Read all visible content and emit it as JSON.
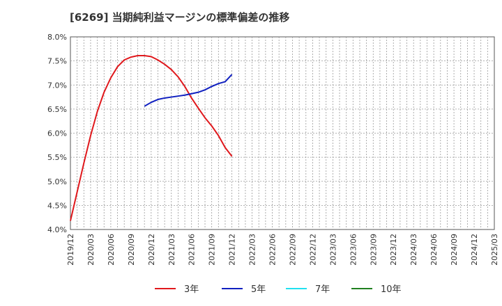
{
  "chart_data": {
    "type": "line",
    "title": "[6269]  当期純利益マージンの標準偏差の推移",
    "xlabel": "",
    "ylabel": "",
    "ylim": [
      4.0,
      8.0
    ],
    "y_ticks": [
      "4.0%",
      "4.5%",
      "5.0%",
      "5.5%",
      "6.0%",
      "6.5%",
      "7.0%",
      "7.5%",
      "8.0%"
    ],
    "x_ticks": [
      "2019/12",
      "2020/03",
      "2020/06",
      "2020/09",
      "2020/12",
      "2021/03",
      "2021/06",
      "2021/09",
      "2021/12",
      "2022/03",
      "2022/06",
      "2022/09",
      "2022/12",
      "2023/03",
      "2023/06",
      "2023/09",
      "2023/12",
      "2024/03",
      "2024/06",
      "2024/09",
      "2024/12",
      "2025/03"
    ],
    "x_range": [
      "2019/12",
      "2025/03"
    ],
    "grid": true,
    "series": [
      {
        "name": "3年",
        "color": "#e0181c",
        "x": [
          "2019/12",
          "2020/01",
          "2020/02",
          "2020/03",
          "2020/04",
          "2020/05",
          "2020/06",
          "2020/07",
          "2020/08",
          "2020/09",
          "2020/10",
          "2020/11",
          "2020/12",
          "2021/01",
          "2021/02",
          "2021/03",
          "2021/04",
          "2021/05",
          "2021/06",
          "2021/07",
          "2021/08",
          "2021/09",
          "2021/10",
          "2021/11",
          "2021/12"
        ],
        "values": [
          4.18,
          4.78,
          5.38,
          5.95,
          6.45,
          6.85,
          7.15,
          7.38,
          7.52,
          7.58,
          7.61,
          7.61,
          7.59,
          7.52,
          7.43,
          7.32,
          7.17,
          6.97,
          6.73,
          6.52,
          6.32,
          6.15,
          5.95,
          5.7,
          5.52
        ]
      },
      {
        "name": "5年",
        "color": "#1020c0",
        "x": [
          "2020/11",
          "2020/12",
          "2021/01",
          "2021/02",
          "2021/03",
          "2021/04",
          "2021/05",
          "2021/06",
          "2021/07",
          "2021/08",
          "2021/09",
          "2021/10",
          "2021/11",
          "2021/12"
        ],
        "values": [
          6.56,
          6.64,
          6.7,
          6.73,
          6.75,
          6.77,
          6.79,
          6.82,
          6.85,
          6.9,
          6.97,
          7.03,
          7.07,
          7.22
        ]
      },
      {
        "name": "7年",
        "color": "#20e0f0",
        "x": [],
        "values": []
      },
      {
        "name": "10年",
        "color": "#208020",
        "x": [],
        "values": []
      }
    ]
  }
}
